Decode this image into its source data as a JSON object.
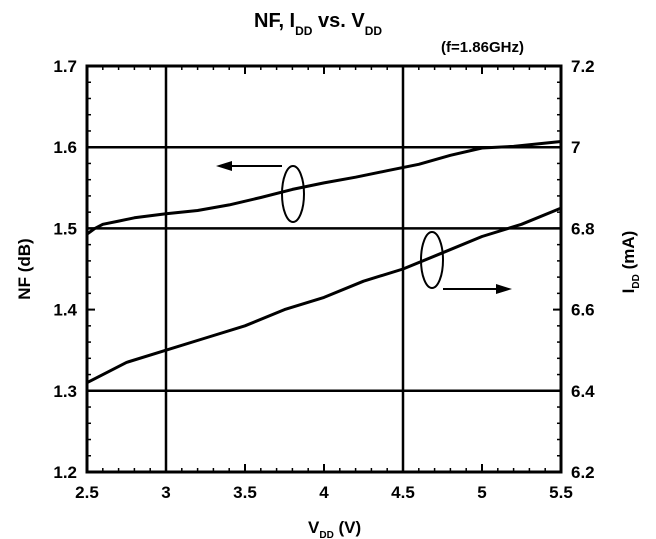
{
  "chart_data": {
    "type": "line",
    "title": {
      "main": "NF, I",
      "sub1": "DD",
      "mid": " vs. V",
      "sub2": "DD",
      "condition": "(f=1.86GHz)"
    },
    "xlabel": {
      "main": "V",
      "sub": "DD",
      "unit": " (V)"
    },
    "ylabel_left": "NF (dB)",
    "ylabel_right": {
      "main": "I",
      "sub": "DD",
      "unit": " (mA)"
    },
    "xlim": [
      2.5,
      5.5
    ],
    "ylim_left": [
      1.2,
      1.7
    ],
    "ylim_right": [
      6.2,
      7.2
    ],
    "x_ticks": [
      "2.5",
      "3",
      "3.5",
      "4",
      "4.5",
      "5",
      "5.5"
    ],
    "y_ticks_left": [
      "1.2",
      "1.3",
      "1.4",
      "1.5",
      "1.6",
      "1.7"
    ],
    "y_ticks_right": [
      "6.2",
      "6.4",
      "6.6",
      "6.8",
      "7",
      "7.2"
    ],
    "grid": {
      "x": [
        3,
        4.5
      ],
      "y_left": [
        1.3,
        1.5,
        1.6
      ]
    },
    "series": [
      {
        "axis": "left",
        "x": [
          2.5,
          2.55,
          2.6,
          2.7,
          2.8,
          3.0,
          3.2,
          3.4,
          3.6,
          3.8,
          4.0,
          4.2,
          4.4,
          4.6,
          4.8,
          5.0,
          5.2,
          5.4,
          5.5
        ],
        "y": [
          1.493,
          1.5,
          1.505,
          1.509,
          1.513,
          1.518,
          1.522,
          1.529,
          1.538,
          1.548,
          1.556,
          1.563,
          1.571,
          1.579,
          1.59,
          1.599,
          1.601,
          1.605,
          1.607
        ]
      },
      {
        "axis": "right",
        "x": [
          2.5,
          2.75,
          3.0,
          3.25,
          3.5,
          3.75,
          4.0,
          4.25,
          4.5,
          4.75,
          5.0,
          5.25,
          5.5
        ],
        "y": [
          6.42,
          6.47,
          6.5,
          6.53,
          6.56,
          6.6,
          6.63,
          6.67,
          6.7,
          6.74,
          6.78,
          6.81,
          6.85
        ]
      }
    ]
  }
}
